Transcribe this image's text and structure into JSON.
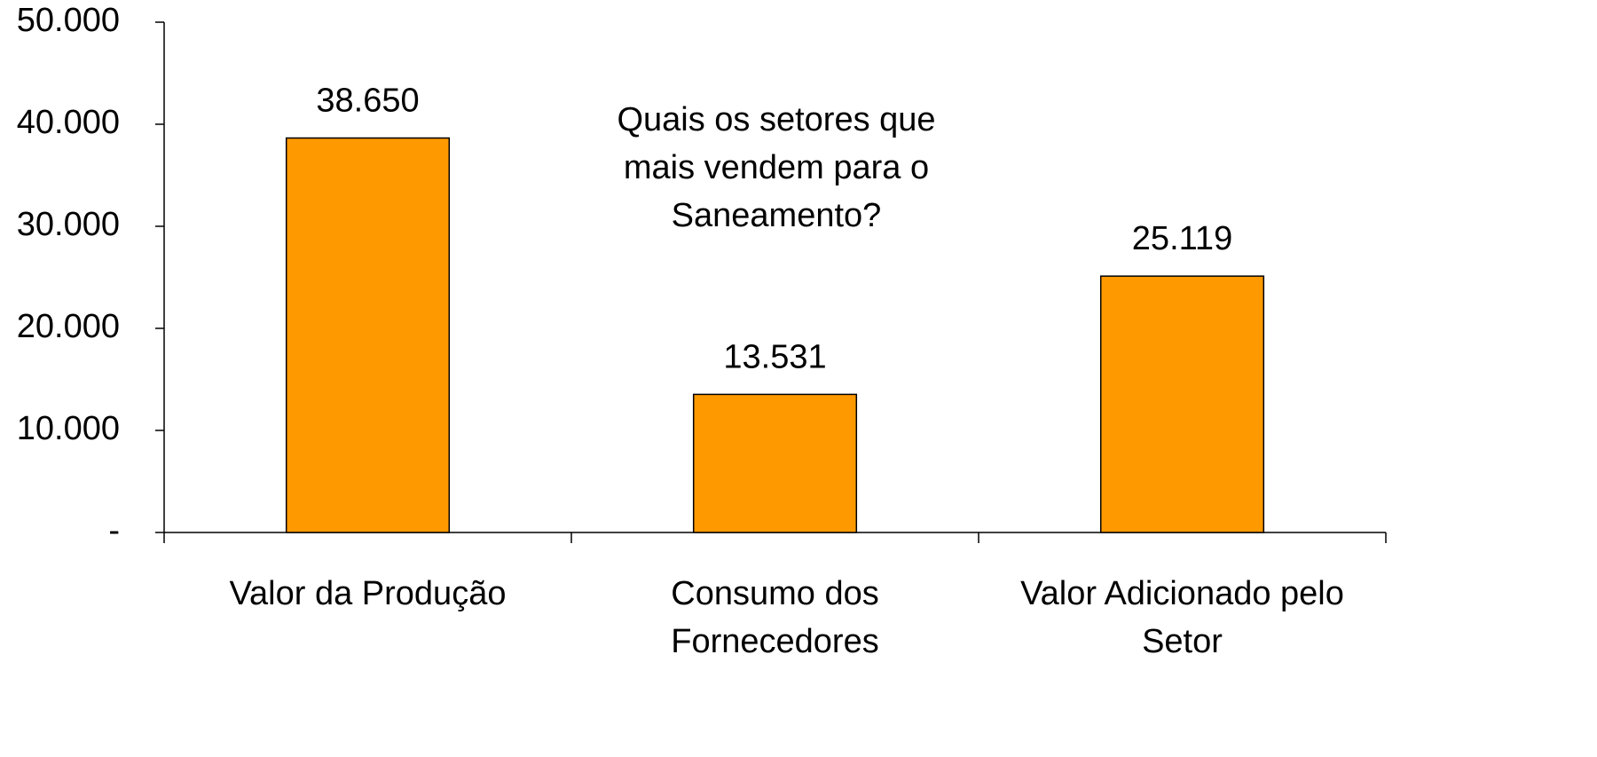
{
  "chart_data": {
    "type": "bar",
    "annotation": "Quais os setores que mais vendem para o Saneamento?",
    "categories": [
      "Valor da Produção",
      "Consumo dos Fornecedores",
      "Valor Adicionado pelo Setor"
    ],
    "values": [
      38650,
      13531,
      25119
    ],
    "value_labels": [
      "38.650",
      "13.531",
      "25.119"
    ],
    "color": "#ff9900",
    "ylim": [
      0,
      50000
    ],
    "yticks": [
      {
        "value": 0,
        "label": "-"
      },
      {
        "value": 10000,
        "label": "10.000"
      },
      {
        "value": 20000,
        "label": "20.000"
      },
      {
        "value": 30000,
        "label": "30.000"
      },
      {
        "value": 40000,
        "label": "40.000"
      },
      {
        "value": 50000,
        "label": "50.000"
      }
    ],
    "grid": false
  }
}
